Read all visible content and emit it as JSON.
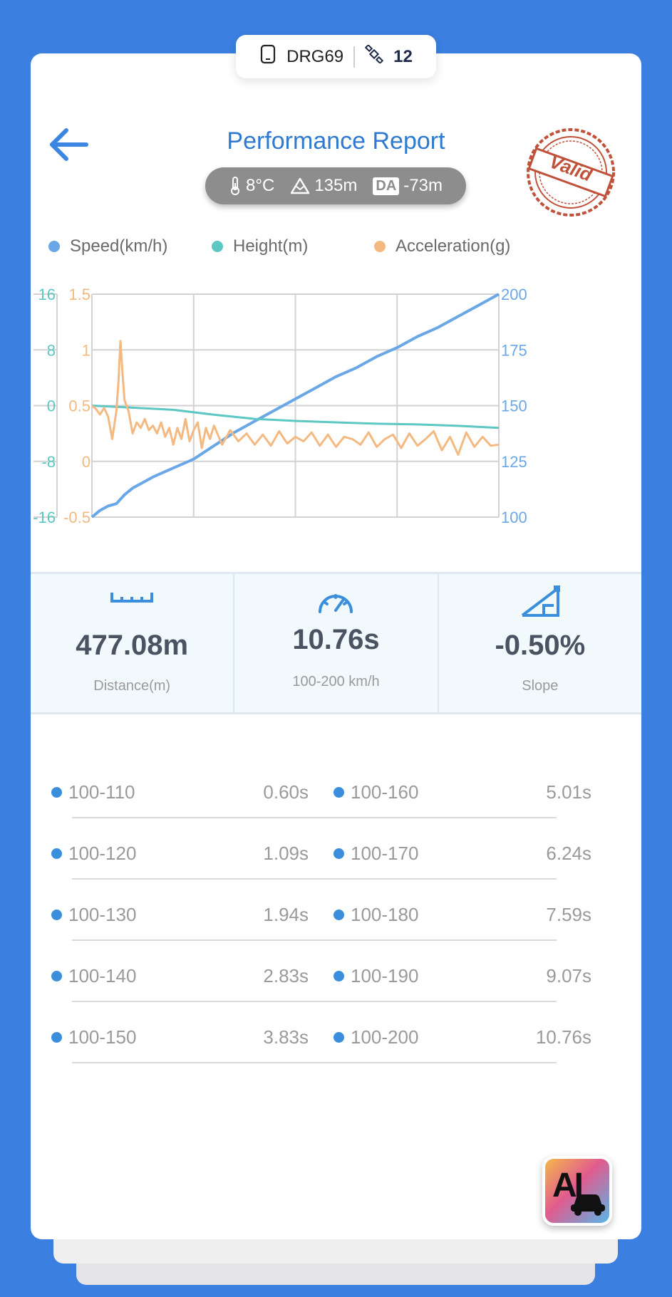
{
  "device": {
    "name": "DRG69",
    "satellites": "12"
  },
  "header": {
    "title": "Performance Report"
  },
  "conditions": {
    "temperature": "8°C",
    "altitude": "135m",
    "da_label": "DA",
    "density_altitude": "-73m"
  },
  "stamp": {
    "text": "Valid"
  },
  "legend": [
    {
      "label": "Speed(km/h)",
      "color": "#6aa7e6"
    },
    {
      "label": "Height(m)",
      "color": "#5cc7c3"
    },
    {
      "label": "Acceleration(g)",
      "color": "#f3b981"
    }
  ],
  "chart_data": {
    "type": "line",
    "series": [
      {
        "name": "Speed(km/h)",
        "axis": "right",
        "color": "#6aa7e6",
        "x": [
          0,
          0.02,
          0.04,
          0.06,
          0.08,
          0.1,
          0.12,
          0.15,
          0.2,
          0.25,
          0.3,
          0.35,
          0.4,
          0.45,
          0.5,
          0.55,
          0.6,
          0.65,
          0.7,
          0.75,
          0.8,
          0.85,
          0.9,
          0.95,
          1.0
        ],
        "values": [
          100,
          103,
          105,
          106,
          110,
          113,
          115,
          118,
          122,
          126,
          132,
          138,
          143,
          148,
          153,
          158,
          163,
          167,
          172,
          176,
          181,
          185,
          190,
          195,
          200
        ]
      },
      {
        "name": "Height(m)",
        "axis": "left-outer",
        "color": "#5cc7c3",
        "x": [
          0,
          0.1,
          0.2,
          0.3,
          0.4,
          0.5,
          0.6,
          0.7,
          0.8,
          0.9,
          1.0
        ],
        "values": [
          0,
          -0.3,
          -0.6,
          -1.3,
          -1.9,
          -2.2,
          -2.4,
          -2.6,
          -2.7,
          -2.9,
          -3.2
        ]
      },
      {
        "name": "Acceleration(g)",
        "axis": "left-inner",
        "color": "#f3b981",
        "x": [
          0,
          0.01,
          0.02,
          0.03,
          0.04,
          0.05,
          0.06,
          0.065,
          0.07,
          0.075,
          0.08,
          0.09,
          0.1,
          0.11,
          0.12,
          0.13,
          0.14,
          0.15,
          0.16,
          0.17,
          0.18,
          0.19,
          0.2,
          0.21,
          0.22,
          0.23,
          0.24,
          0.25,
          0.26,
          0.27,
          0.28,
          0.29,
          0.3,
          0.32,
          0.34,
          0.36,
          0.38,
          0.4,
          0.42,
          0.44,
          0.46,
          0.48,
          0.5,
          0.52,
          0.54,
          0.56,
          0.58,
          0.6,
          0.62,
          0.64,
          0.66,
          0.68,
          0.7,
          0.72,
          0.74,
          0.76,
          0.78,
          0.8,
          0.82,
          0.84,
          0.86,
          0.88,
          0.9,
          0.92,
          0.94,
          0.96,
          0.98,
          1.0
        ],
        "values": [
          0.5,
          0.47,
          0.42,
          0.48,
          0.4,
          0.2,
          0.45,
          0.7,
          1.08,
          0.8,
          0.55,
          0.45,
          0.25,
          0.35,
          0.3,
          0.38,
          0.28,
          0.32,
          0.25,
          0.35,
          0.22,
          0.3,
          0.15,
          0.3,
          0.2,
          0.38,
          0.18,
          0.28,
          0.35,
          0.12,
          0.3,
          0.2,
          0.32,
          0.15,
          0.28,
          0.18,
          0.25,
          0.15,
          0.24,
          0.14,
          0.27,
          0.16,
          0.22,
          0.18,
          0.26,
          0.14,
          0.24,
          0.13,
          0.22,
          0.2,
          0.15,
          0.26,
          0.13,
          0.2,
          0.24,
          0.12,
          0.25,
          0.14,
          0.2,
          0.27,
          0.1,
          0.22,
          0.06,
          0.26,
          0.13,
          0.22,
          0.14,
          0.15
        ]
      }
    ],
    "axes": {
      "left_outer": {
        "ticks": [
          "16",
          "8",
          "0",
          "-8",
          "-16"
        ],
        "range": [
          -16,
          16
        ],
        "color": "#5cc7c3"
      },
      "left_inner": {
        "ticks": [
          "1.5",
          "1",
          "0.5",
          "0",
          "-0.5"
        ],
        "range": [
          -0.5,
          1.5
        ],
        "color": "#f3b981"
      },
      "right": {
        "ticks": [
          "200",
          "175",
          "150",
          "125",
          "100"
        ],
        "range": [
          100,
          200
        ],
        "color": "#6aa7e6"
      }
    },
    "grid": true,
    "vertical_gridlines": 4,
    "legend_position": "top"
  },
  "stats": [
    {
      "icon": "ruler-icon",
      "value": "477.08m",
      "label": "Distance(m)"
    },
    {
      "icon": "speedometer-icon",
      "value": "10.76s",
      "label": "100-200 km/h"
    },
    {
      "icon": "slope-icon",
      "value": "-0.50%",
      "label": "Slope"
    }
  ],
  "splits": [
    {
      "left_range": "100-110",
      "left_time": "0.60s",
      "right_range": "100-160",
      "right_time": "5.01s"
    },
    {
      "left_range": "100-120",
      "left_time": "1.09s",
      "right_range": "100-170",
      "right_time": "6.24s"
    },
    {
      "left_range": "100-130",
      "left_time": "1.94s",
      "right_range": "100-180",
      "right_time": "7.59s"
    },
    {
      "left_range": "100-140",
      "left_time": "2.83s",
      "right_range": "100-190",
      "right_time": "9.07s"
    },
    {
      "left_range": "100-150",
      "left_time": "3.83s",
      "right_range": "100-200",
      "right_time": "10.76s"
    }
  ],
  "ai_button": {
    "label": "AI"
  },
  "colors": {
    "accent": "#2f7ad1",
    "background": "#3b7fe0",
    "stamp": "#c0513a"
  }
}
